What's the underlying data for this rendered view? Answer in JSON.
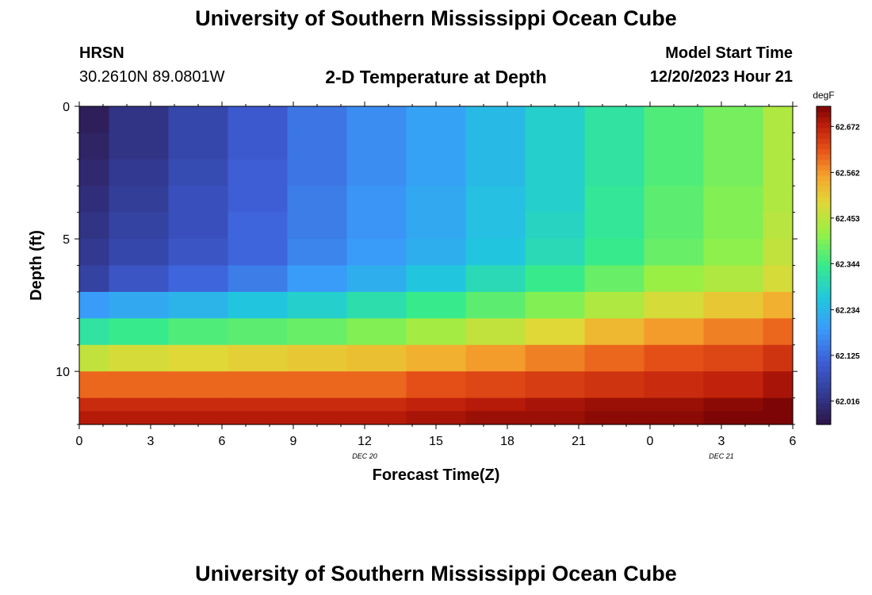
{
  "header": {
    "title": "University of Southern Mississippi Ocean Cube",
    "station_name": "HRSN",
    "station_coords": "30.2610N  89.0801W",
    "plot_title": "2-D Temperature at Depth",
    "model_start_label": "Model Start Time",
    "model_start_value": "12/20/2023 Hour 21"
  },
  "footer": {
    "title": "University of Southern Mississippi Ocean Cube"
  },
  "chart_data": {
    "type": "heatmap",
    "title": "2-D Temperature at Depth",
    "xlabel": "Forecast Time(Z)",
    "ylabel": "Depth (ft)",
    "x_hours": [
      0,
      3,
      6,
      9,
      12,
      15,
      18,
      21,
      24,
      27,
      30
    ],
    "x_tick_labels": [
      "0",
      "3",
      "6",
      "9",
      "12",
      "15",
      "18",
      "21",
      "0",
      "3",
      "6"
    ],
    "x_range_hours": [
      0,
      30
    ],
    "date_labels": [
      {
        "hour": 12,
        "text": "DEC 20"
      },
      {
        "hour": 27,
        "text": "DEC 21"
      }
    ],
    "y_ticks": [
      0,
      5,
      10
    ],
    "y_range_ft": [
      0,
      12
    ],
    "colorbar": {
      "unit": "degF",
      "min": 61.96,
      "max": 62.72,
      "tick_values": [
        62.016,
        62.125,
        62.234,
        62.344,
        62.453,
        62.562,
        62.672
      ],
      "tick_labels": [
        "62.016",
        "62.125",
        "62.234",
        "62.344",
        "62.453",
        "62.562",
        "62.672"
      ]
    },
    "column_centers_hours": [
      0,
      2.5,
      5,
      7.5,
      10,
      12.5,
      15,
      17.5,
      20,
      22.5,
      25,
      27.5,
      30
    ],
    "row_depth_bounds_ft": [
      0,
      1,
      2,
      3,
      4,
      5,
      6,
      7,
      8,
      9,
      10,
      11,
      11.5,
      12
    ],
    "values_degF": [
      [
        61.98,
        62.02,
        62.06,
        62.1,
        62.14,
        62.17,
        62.2,
        62.24,
        62.28,
        62.32,
        62.36,
        62.39,
        62.44
      ],
      [
        61.99,
        62.02,
        62.06,
        62.1,
        62.14,
        62.17,
        62.2,
        62.24,
        62.28,
        62.32,
        62.36,
        62.39,
        62.44
      ],
      [
        62.0,
        62.03,
        62.07,
        62.11,
        62.14,
        62.17,
        62.2,
        62.24,
        62.28,
        62.32,
        62.36,
        62.39,
        62.44
      ],
      [
        62.01,
        62.04,
        62.08,
        62.11,
        62.15,
        62.18,
        62.21,
        62.25,
        62.28,
        62.33,
        62.37,
        62.4,
        62.44
      ],
      [
        62.02,
        62.05,
        62.08,
        62.12,
        62.15,
        62.18,
        62.21,
        62.25,
        62.29,
        62.33,
        62.37,
        62.4,
        62.45
      ],
      [
        62.03,
        62.06,
        62.09,
        62.12,
        62.16,
        62.19,
        62.22,
        62.26,
        62.3,
        62.34,
        62.38,
        62.41,
        62.46
      ],
      [
        62.05,
        62.09,
        62.12,
        62.15,
        62.19,
        62.22,
        62.26,
        62.3,
        62.34,
        62.38,
        62.42,
        62.44,
        62.48
      ],
      [
        62.19,
        62.21,
        62.23,
        62.26,
        62.28,
        62.31,
        62.34,
        62.37,
        62.4,
        62.44,
        62.48,
        62.51,
        62.54
      ],
      [
        62.32,
        62.34,
        62.36,
        62.37,
        62.38,
        62.4,
        62.43,
        62.46,
        62.49,
        62.53,
        62.56,
        62.58,
        62.6
      ],
      [
        62.46,
        62.48,
        62.49,
        62.5,
        62.51,
        62.52,
        62.54,
        62.56,
        62.58,
        62.6,
        62.62,
        62.63,
        62.65
      ],
      [
        62.6,
        62.6,
        62.6,
        62.6,
        62.6,
        62.6,
        62.62,
        62.63,
        62.64,
        62.65,
        62.66,
        62.67,
        62.69
      ],
      [
        62.66,
        62.66,
        62.66,
        62.66,
        62.66,
        62.66,
        62.67,
        62.68,
        62.69,
        62.7,
        62.7,
        62.71,
        62.72
      ],
      [
        62.68,
        62.68,
        62.68,
        62.68,
        62.68,
        62.68,
        62.69,
        62.7,
        62.7,
        62.71,
        62.71,
        62.72,
        62.72
      ]
    ]
  }
}
